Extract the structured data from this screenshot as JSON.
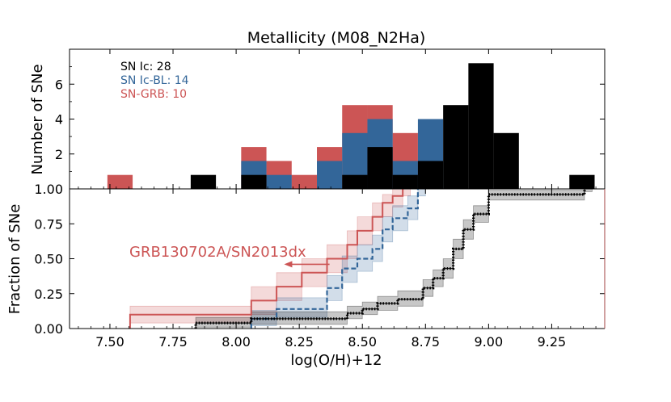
{
  "chart_data": {
    "type": "bar",
    "title": "Metallicity (M08_N2Ha)",
    "xlabel": "log(O/H)+12",
    "xlim": [
      7.34,
      9.46
    ],
    "x_ticks": [
      "7.50",
      "7.75",
      "8.00",
      "8.25",
      "8.50",
      "8.75",
      "9.00",
      "9.25"
    ],
    "histogram": {
      "ylabel": "Number of SNe",
      "ylim": [
        0,
        8
      ],
      "y_ticks": [
        "2",
        "4",
        "6"
      ],
      "bin_width": 0.1,
      "legend": [
        {
          "text": "SN Ic: 28",
          "color": "#000000"
        },
        {
          "text": "SN Ic-BL: 14",
          "color": "#336699"
        },
        {
          "text": "SN-GRB: 10",
          "color": "#cc5555"
        }
      ],
      "series": [
        {
          "name": "SN-GRB",
          "color": "#cc5555",
          "bins": [
            {
              "x0": 7.49,
              "top": 0.8
            },
            {
              "x0": 8.02,
              "top": 2.4
            },
            {
              "x0": 8.12,
              "top": 1.6
            },
            {
              "x0": 8.22,
              "top": 0.8
            },
            {
              "x0": 8.32,
              "top": 2.4
            },
            {
              "x0": 8.42,
              "top": 4.8
            },
            {
              "x0": 8.52,
              "top": 4.8
            },
            {
              "x0": 8.62,
              "top": 3.2
            }
          ]
        },
        {
          "name": "SN Ic-BL",
          "color": "#336699",
          "bins": [
            {
              "x0": 8.02,
              "top": 1.6
            },
            {
              "x0": 8.12,
              "top": 0.8
            },
            {
              "x0": 8.32,
              "top": 1.6
            },
            {
              "x0": 8.42,
              "top": 3.2
            },
            {
              "x0": 8.52,
              "top": 4.0
            },
            {
              "x0": 8.62,
              "top": 1.6
            },
            {
              "x0": 8.72,
              "top": 4.0
            }
          ]
        },
        {
          "name": "SN Ic",
          "color": "#000000",
          "bins": [
            {
              "x0": 7.82,
              "top": 0.8
            },
            {
              "x0": 8.02,
              "top": 0.8
            },
            {
              "x0": 8.42,
              "top": 0.8
            },
            {
              "x0": 8.52,
              "top": 2.4
            },
            {
              "x0": 8.62,
              "top": 0.8
            },
            {
              "x0": 8.72,
              "top": 1.6
            },
            {
              "x0": 8.82,
              "top": 4.8
            },
            {
              "x0": 8.92,
              "top": 7.2
            },
            {
              "x0": 9.02,
              "top": 3.2
            },
            {
              "x0": 9.32,
              "top": 0.8
            }
          ]
        }
      ]
    },
    "cdf": {
      "ylabel": "Fraction of SNe",
      "ylim": [
        0,
        1
      ],
      "y_ticks": [
        "0.00",
        "0.25",
        "0.50",
        "0.75",
        "1.00"
      ],
      "annotation": {
        "text": "GRB130702A/SN2013dx",
        "arrow_from": 8.37,
        "arrow_to": 8.19,
        "y": 0.46,
        "color": "#cc5555"
      },
      "series": [
        {
          "name": "SN-GRB",
          "color": "#cc5555",
          "style": "solid",
          "x": [
            7.58,
            8.06,
            8.16,
            8.26,
            8.36,
            8.44,
            8.48,
            8.54,
            8.58,
            8.62,
            8.66
          ],
          "y": [
            0.1,
            0.2,
            0.3,
            0.4,
            0.5,
            0.6,
            0.7,
            0.8,
            0.9,
            0.95,
            1.0
          ],
          "lo": [
            0.04,
            0.1,
            0.2,
            0.3,
            0.4,
            0.5,
            0.6,
            0.7,
            0.8,
            0.87,
            0.95
          ],
          "hi": [
            0.16,
            0.3,
            0.4,
            0.5,
            0.6,
            0.7,
            0.8,
            0.9,
            0.96,
            1.0,
            1.0
          ],
          "band_x0": 7.37
        },
        {
          "name": "SN Ic-BL",
          "color": "#336699",
          "style": "dashed",
          "x": [
            8.06,
            8.16,
            8.36,
            8.42,
            8.48,
            8.54,
            8.58,
            8.62,
            8.68,
            8.72
          ],
          "y": [
            0.07,
            0.14,
            0.29,
            0.43,
            0.5,
            0.57,
            0.71,
            0.79,
            0.86,
            1.0
          ],
          "lo": [
            0.02,
            0.08,
            0.2,
            0.33,
            0.41,
            0.48,
            0.62,
            0.7,
            0.78,
            0.95
          ],
          "hi": [
            0.13,
            0.22,
            0.38,
            0.52,
            0.6,
            0.67,
            0.8,
            0.88,
            0.95,
            1.0
          ],
          "band_x0": 7.84
        },
        {
          "name": "SN Ic",
          "color": "#000000",
          "style": "dotted",
          "x": [
            7.84,
            8.06,
            8.44,
            8.5,
            8.56,
            8.64,
            8.74,
            8.78,
            8.82,
            8.86,
            8.9,
            8.94,
            9.0,
            9.38
          ],
          "y": [
            0.04,
            0.07,
            0.11,
            0.14,
            0.18,
            0.21,
            0.29,
            0.36,
            0.43,
            0.57,
            0.71,
            0.82,
            0.96,
            1.0
          ],
          "lo": [
            0.01,
            0.03,
            0.07,
            0.1,
            0.13,
            0.16,
            0.23,
            0.3,
            0.36,
            0.5,
            0.64,
            0.76,
            0.92,
            0.98
          ],
          "hi": [
            0.08,
            0.12,
            0.16,
            0.19,
            0.23,
            0.27,
            0.35,
            0.42,
            0.5,
            0.64,
            0.78,
            0.88,
            0.99,
            1.0
          ],
          "band_x0": 7.67
        }
      ]
    }
  }
}
